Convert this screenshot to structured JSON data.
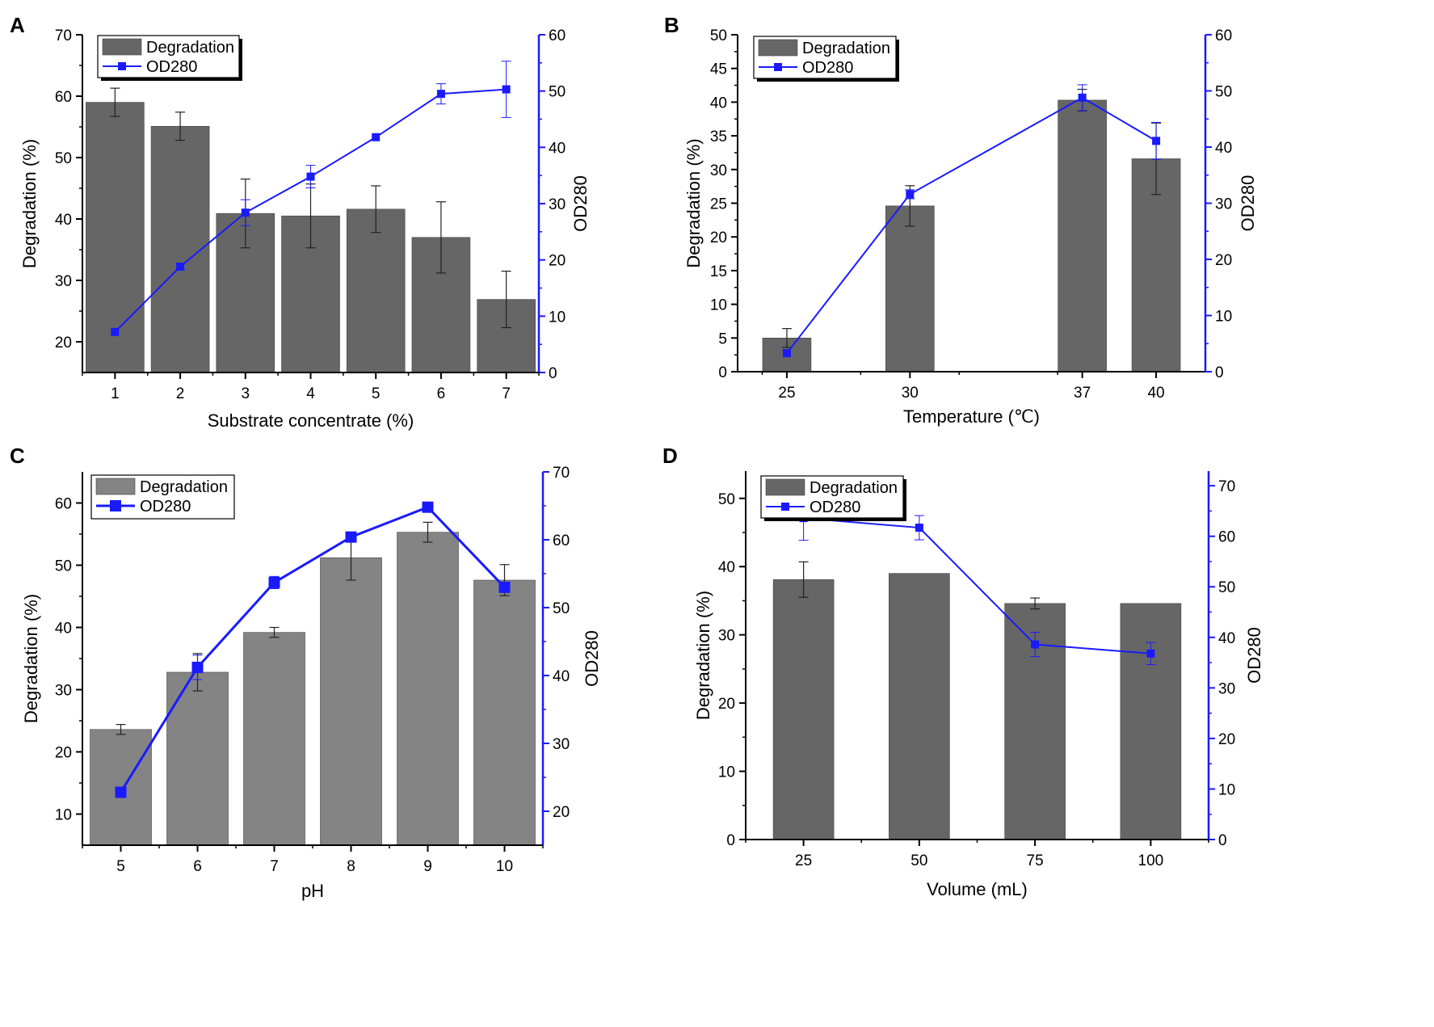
{
  "colors": {
    "bar": "#666666",
    "bar_light": "#848484",
    "line": "#1a1aff",
    "axis": "#000000"
  },
  "chart_data": [
    {
      "panel": "A",
      "type": "bar",
      "categories": [
        "1",
        "2",
        "3",
        "4",
        "5",
        "6",
        "7"
      ],
      "xlabel": "Substrate  concentrate (%)",
      "ylabel": "Degradation (%)",
      "y2label": "OD280",
      "ylim": [
        15,
        70
      ],
      "yticks": [
        "20",
        "30",
        "40",
        "50",
        "60",
        "70"
      ],
      "y2lim": [
        0,
        60
      ],
      "y2ticks": [
        "0",
        "10",
        "20",
        "30",
        "40",
        "50",
        "60"
      ],
      "legend": {
        "bar": "Degradation",
        "line": "OD280"
      },
      "series": [
        {
          "name": "Degradation",
          "kind": "bar",
          "values": [
            59.0,
            55.1,
            40.9,
            40.5,
            41.6,
            37.0,
            26.9
          ],
          "errors": [
            2.3,
            2.3,
            5.6,
            5.2,
            3.8,
            5.8,
            4.6
          ]
        },
        {
          "name": "OD280",
          "kind": "line",
          "axis": "right",
          "values": [
            7.2,
            18.8,
            28.4,
            34.8,
            41.8,
            49.5,
            50.3
          ],
          "errors": [
            0,
            0.6,
            2.3,
            2.0,
            0,
            1.8,
            5.0
          ]
        }
      ]
    },
    {
      "panel": "B",
      "type": "bar",
      "categories": [
        "25",
        "30",
        "37",
        "40"
      ],
      "x": [
        25,
        30,
        37,
        40
      ],
      "xlim": [
        23,
        42
      ],
      "xlabel": "Temperature (℃)",
      "ylabel": "Degradation (%)",
      "y2label": "OD280",
      "ylim": [
        0,
        50
      ],
      "yticks": [
        "0",
        "5",
        "10",
        "15",
        "20",
        "25",
        "30",
        "35",
        "40",
        "45",
        "50"
      ],
      "y2lim": [
        0,
        60
      ],
      "y2ticks": [
        "0",
        "10",
        "20",
        "30",
        "40",
        "50",
        "60"
      ],
      "legend": {
        "bar": "Degradation",
        "line": "OD280"
      },
      "series": [
        {
          "name": "Degradation",
          "kind": "bar",
          "values": [
            5.0,
            24.6,
            40.3,
            31.6
          ],
          "errors": [
            1.4,
            3.0,
            1.6,
            5.3
          ]
        },
        {
          "name": "OD280",
          "kind": "line",
          "axis": "right",
          "values": [
            3.3,
            31.6,
            48.8,
            41.1
          ],
          "errors": [
            0,
            0.8,
            2.3,
            3.3
          ]
        }
      ]
    },
    {
      "panel": "C",
      "type": "bar",
      "categories": [
        "5",
        "6",
        "7",
        "8",
        "9",
        "10"
      ],
      "xlabel": "pH",
      "ylabel": "Degradation (%)",
      "y2label": "OD280",
      "ylim": [
        5,
        65
      ],
      "yticks": [
        "10",
        "20",
        "30",
        "40",
        "50",
        "60"
      ],
      "y2lim": [
        15,
        70
      ],
      "y2ticks": [
        "20",
        "30",
        "40",
        "50",
        "60",
        "70"
      ],
      "legend": {
        "bar": "Degradation",
        "line": "OD280"
      },
      "series": [
        {
          "name": "Degradation",
          "kind": "bar",
          "values": [
            23.6,
            32.8,
            39.2,
            51.2,
            55.3,
            47.6
          ],
          "errors": [
            0.8,
            3.0,
            0.8,
            3.6,
            1.6,
            2.5
          ]
        },
        {
          "name": "OD280",
          "kind": "line",
          "axis": "right",
          "values": [
            22.8,
            41.2,
            53.7,
            60.4,
            64.8,
            53.0
          ],
          "errors": [
            0.6,
            1.8,
            0.9,
            0.4,
            0.7,
            0.5
          ]
        }
      ]
    },
    {
      "panel": "D",
      "type": "bar",
      "categories": [
        "25",
        "50",
        "75",
        "100"
      ],
      "xlabel": "Volume (mL)",
      "ylabel": "Degradation (%)",
      "y2label": "OD280",
      "ylim": [
        0,
        54
      ],
      "yticks": [
        "0",
        "10",
        "20",
        "30",
        "40",
        "50"
      ],
      "y2lim": [
        0,
        72.9
      ],
      "y2ticks": [
        "0",
        "10",
        "20",
        "30",
        "40",
        "50",
        "60",
        "70"
      ],
      "legend": {
        "bar": "Degradation",
        "line": "OD280"
      },
      "series": [
        {
          "name": "Degradation",
          "kind": "bar",
          "values": [
            38.1,
            39.0,
            34.6,
            34.6
          ],
          "errors": [
            2.6,
            0,
            0.8,
            0
          ]
        },
        {
          "name": "OD280",
          "kind": "line",
          "axis": "right",
          "values": [
            63.6,
            61.7,
            38.6,
            36.8
          ],
          "errors": [
            4.4,
            2.4,
            2.4,
            2.2
          ]
        }
      ]
    }
  ]
}
